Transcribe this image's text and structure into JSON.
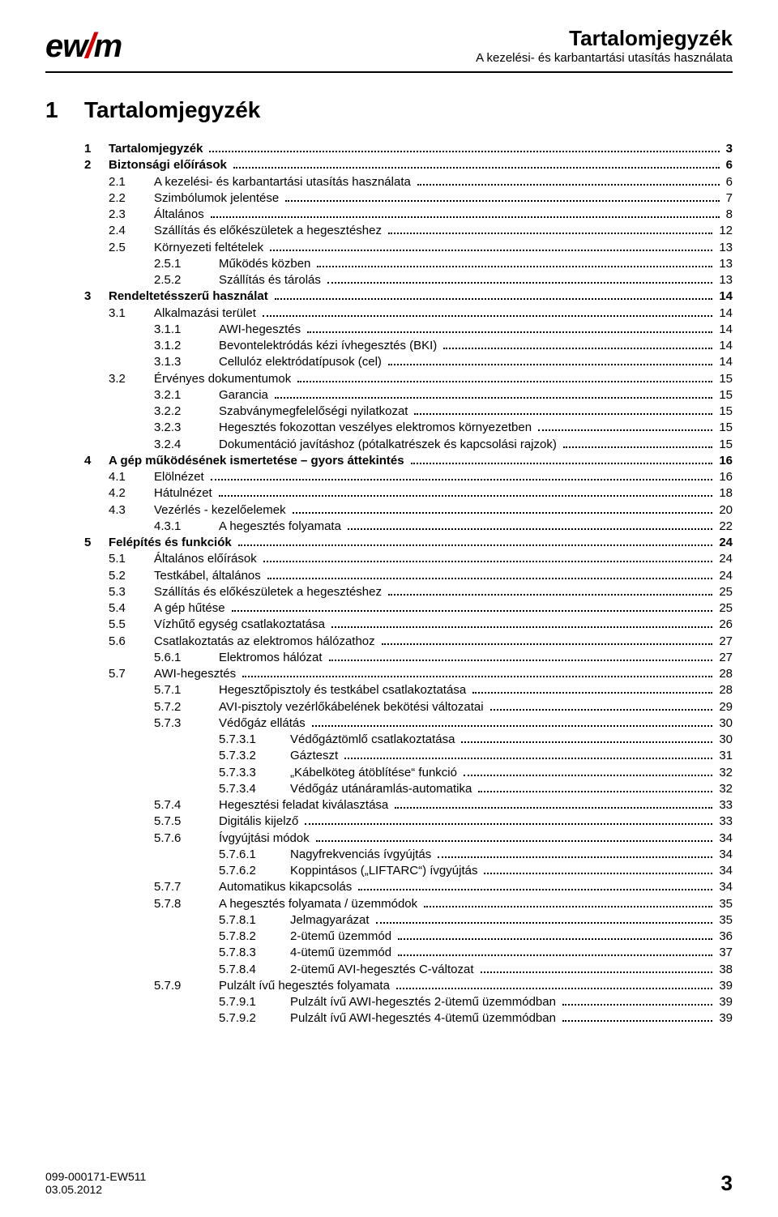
{
  "header": {
    "logo_left": "ew",
    "logo_right": "m",
    "title": "Tartalomjegyzék",
    "subtitle": "A kezelési- és karbantartási utasítás használata"
  },
  "chapter": {
    "num": "1",
    "title": "Tartalomjegyzék"
  },
  "toc": [
    {
      "lvl": 0,
      "bold": true,
      "num": "1",
      "label": "Tartalomjegyzék",
      "page": "3"
    },
    {
      "lvl": 0,
      "bold": true,
      "num": "2",
      "label": "Biztonsági előírások",
      "page": "6"
    },
    {
      "lvl": 1,
      "bold": false,
      "num": "2.1",
      "label": "A kezelési- és karbantartási utasítás használata",
      "page": "6"
    },
    {
      "lvl": 1,
      "bold": false,
      "num": "2.2",
      "label": "Szimbólumok jelentése",
      "page": "7"
    },
    {
      "lvl": 1,
      "bold": false,
      "num": "2.3",
      "label": "Általános",
      "page": "8"
    },
    {
      "lvl": 1,
      "bold": false,
      "num": "2.4",
      "label": "Szállítás és előkészületek a hegesztéshez",
      "page": "12"
    },
    {
      "lvl": 1,
      "bold": false,
      "num": "2.5",
      "label": "Környezeti feltételek",
      "page": "13"
    },
    {
      "lvl": 2,
      "bold": false,
      "num": "2.5.1",
      "label": "Működés közben",
      "page": "13"
    },
    {
      "lvl": 2,
      "bold": false,
      "num": "2.5.2",
      "label": "Szállítás és tárolás",
      "page": "13"
    },
    {
      "lvl": 0,
      "bold": true,
      "num": "3",
      "label": "Rendeltetésszerű használat",
      "page": "14"
    },
    {
      "lvl": 1,
      "bold": false,
      "num": "3.1",
      "label": "Alkalmazási terület",
      "page": "14"
    },
    {
      "lvl": 2,
      "bold": false,
      "num": "3.1.1",
      "label": "AWI-hegesztés",
      "page": "14"
    },
    {
      "lvl": 2,
      "bold": false,
      "num": "3.1.2",
      "label": "Bevontelektródás kézi ívhegesztés (BKI)",
      "page": "14"
    },
    {
      "lvl": 2,
      "bold": false,
      "num": "3.1.3",
      "label": "Cellulóz elektródatípusok (cel)",
      "page": "14"
    },
    {
      "lvl": 1,
      "bold": false,
      "num": "3.2",
      "label": "Érvényes dokumentumok",
      "page": "15"
    },
    {
      "lvl": 2,
      "bold": false,
      "num": "3.2.1",
      "label": "Garancia",
      "page": "15"
    },
    {
      "lvl": 2,
      "bold": false,
      "num": "3.2.2",
      "label": "Szabványmegfelelőségi nyilatkozat",
      "page": "15"
    },
    {
      "lvl": 2,
      "bold": false,
      "num": "3.2.3",
      "label": "Hegesztés fokozottan veszélyes elektromos környezetben",
      "page": "15"
    },
    {
      "lvl": 2,
      "bold": false,
      "num": "3.2.4",
      "label": "Dokumentáció javításhoz (pótalkatrészek és kapcsolási rajzok)",
      "page": "15"
    },
    {
      "lvl": 0,
      "bold": true,
      "num": "4",
      "label": "A gép működésének ismertetése – gyors áttekintés",
      "page": "16"
    },
    {
      "lvl": 1,
      "bold": false,
      "num": "4.1",
      "label": "Elölnézet",
      "page": "16"
    },
    {
      "lvl": 1,
      "bold": false,
      "num": "4.2",
      "label": "Hátulnézet",
      "page": "18"
    },
    {
      "lvl": 1,
      "bold": false,
      "num": "4.3",
      "label": "Vezérlés - kezelőelemek",
      "page": "20"
    },
    {
      "lvl": 2,
      "bold": false,
      "num": "4.3.1",
      "label": "A hegesztés folyamata",
      "page": "22"
    },
    {
      "lvl": 0,
      "bold": true,
      "num": "5",
      "label": "Felépítés és funkciók",
      "page": "24"
    },
    {
      "lvl": 1,
      "bold": false,
      "num": "5.1",
      "label": "Általános előírások",
      "page": "24"
    },
    {
      "lvl": 1,
      "bold": false,
      "num": "5.2",
      "label": "Testkábel, általános",
      "page": "24"
    },
    {
      "lvl": 1,
      "bold": false,
      "num": "5.3",
      "label": "Szállítás és előkészületek a hegesztéshez",
      "page": "25"
    },
    {
      "lvl": 1,
      "bold": false,
      "num": "5.4",
      "label": "A gép hűtése",
      "page": "25"
    },
    {
      "lvl": 1,
      "bold": false,
      "num": "5.5",
      "label": "Vízhűtő egység csatlakoztatása",
      "page": "26"
    },
    {
      "lvl": 1,
      "bold": false,
      "num": "5.6",
      "label": "Csatlakoztatás az elektromos hálózathoz",
      "page": "27"
    },
    {
      "lvl": 2,
      "bold": false,
      "num": "5.6.1",
      "label": "Elektromos hálózat",
      "page": "27"
    },
    {
      "lvl": 1,
      "bold": false,
      "num": "5.7",
      "label": "AWI-hegesztés",
      "page": "28"
    },
    {
      "lvl": 2,
      "bold": false,
      "num": "5.7.1",
      "label": "Hegesztőpisztoly és testkábel csatlakoztatása",
      "page": "28"
    },
    {
      "lvl": 2,
      "bold": false,
      "num": "5.7.2",
      "label": "AVI-pisztoly vezérlőkábelének bekötési változatai",
      "page": "29"
    },
    {
      "lvl": 2,
      "bold": false,
      "num": "5.7.3",
      "label": "Védőgáz ellátás",
      "page": "30"
    },
    {
      "lvl": 3,
      "bold": false,
      "num": "5.7.3.1",
      "label": "Védőgáztömlő csatlakoztatása",
      "page": "30"
    },
    {
      "lvl": 3,
      "bold": false,
      "num": "5.7.3.2",
      "label": "Gázteszt",
      "page": "31"
    },
    {
      "lvl": 3,
      "bold": false,
      "num": "5.7.3.3",
      "label": "„Kábelköteg átöblítése“ funkció",
      "page": "32"
    },
    {
      "lvl": 3,
      "bold": false,
      "num": "5.7.3.4",
      "label": "Védőgáz utánáramlás-automatika",
      "page": "32"
    },
    {
      "lvl": 2,
      "bold": false,
      "num": "5.7.4",
      "label": "Hegesztési feladat kiválasztása",
      "page": "33"
    },
    {
      "lvl": 2,
      "bold": false,
      "num": "5.7.5",
      "label": "Digitális kijelző",
      "page": "33"
    },
    {
      "lvl": 2,
      "bold": false,
      "num": "5.7.6",
      "label": "Ívgyújtási módok",
      "page": "34"
    },
    {
      "lvl": 3,
      "bold": false,
      "num": "5.7.6.1",
      "label": "Nagyfrekvenciás ívgyújtás",
      "page": "34"
    },
    {
      "lvl": 3,
      "bold": false,
      "num": "5.7.6.2",
      "label": "Koppintásos („LIFTARC“) ívgyújtás",
      "page": "34"
    },
    {
      "lvl": 2,
      "bold": false,
      "num": "5.7.7",
      "label": "Automatikus kikapcsolás",
      "page": "34"
    },
    {
      "lvl": 2,
      "bold": false,
      "num": "5.7.8",
      "label": "A hegesztés folyamata / üzemmódok",
      "page": "35"
    },
    {
      "lvl": 3,
      "bold": false,
      "num": "5.7.8.1",
      "label": "Jelmagyarázat",
      "page": "35"
    },
    {
      "lvl": 3,
      "bold": false,
      "num": "5.7.8.2",
      "label": "2-ütemű üzemmód",
      "page": "36"
    },
    {
      "lvl": 3,
      "bold": false,
      "num": "5.7.8.3",
      "label": "4-ütemű üzemmód",
      "page": "37"
    },
    {
      "lvl": 3,
      "bold": false,
      "num": "5.7.8.4",
      "label": "2-ütemű AVI-hegesztés C-változat",
      "page": "38"
    },
    {
      "lvl": 2,
      "bold": false,
      "num": "5.7.9",
      "label": "Pulzált ívű hegesztés folyamata",
      "page": "39"
    },
    {
      "lvl": 3,
      "bold": false,
      "num": "5.7.9.1",
      "label": "Pulzált ívű AWI-hegesztés 2-ütemű üzemmódban",
      "page": "39"
    },
    {
      "lvl": 3,
      "bold": false,
      "num": "5.7.9.2",
      "label": "Pulzált ívű AWI-hegesztés 4-ütemű üzemmódban",
      "page": "39"
    }
  ],
  "footer": {
    "doc_id": "099-000171-EW511",
    "date": "03.05.2012",
    "page": "3"
  }
}
